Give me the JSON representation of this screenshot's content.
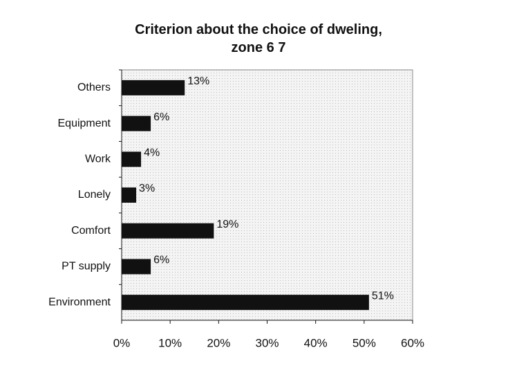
{
  "chart_data": {
    "type": "bar",
    "orientation": "horizontal",
    "title": "Criterion about the choice of dweling, zone 6 7",
    "categories": [
      "Others",
      "Equipment",
      "Work",
      "Lonely",
      "Comfort",
      "PT supply",
      "Environment"
    ],
    "values": [
      13,
      6,
      4,
      3,
      19,
      6,
      51
    ],
    "value_labels": [
      "13%",
      "6%",
      "4%",
      "3%",
      "19%",
      "6%",
      "51%"
    ],
    "color": "#111111",
    "xlim": [
      0,
      60
    ],
    "xticks": [
      {
        "value": 0,
        "label": "0%"
      },
      {
        "value": 10,
        "label": "10%"
      },
      {
        "value": 20,
        "label": "20%"
      },
      {
        "value": 30,
        "label": "30%"
      },
      {
        "value": 40,
        "label": "40%"
      },
      {
        "value": 50,
        "label": "50%"
      },
      {
        "value": 60,
        "label": "60%"
      }
    ]
  }
}
